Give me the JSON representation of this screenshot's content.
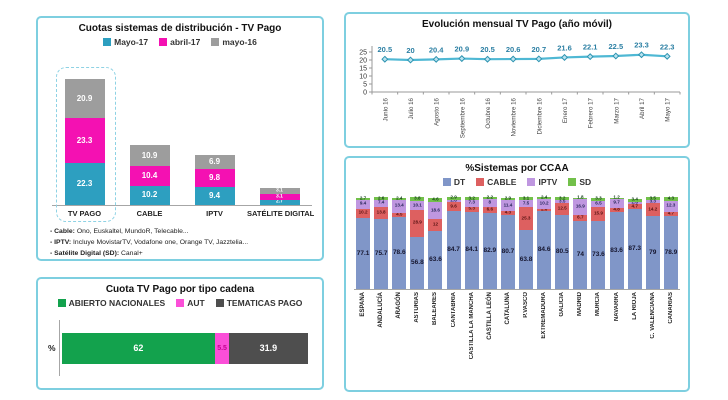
{
  "page": {
    "background": "#ffffff",
    "panel_border_color": "#7ecfe0"
  },
  "chart_data": [
    {
      "id": "cuotas-sistemas-distribucion",
      "type": "bar",
      "subtype": "stacked-vertical",
      "title": "Cuotas sistemas de distribución - TV Pago",
      "categories": [
        "TV PAGO",
        "CABLE",
        "IPTV",
        "SATÉLITE DIGITAL"
      ],
      "series": [
        {
          "name": "Mayo-17",
          "color": "#2d9fc0",
          "values": [
            22.3,
            10.2,
            9.4,
            2.7
          ]
        },
        {
          "name": "abril-17",
          "color": "#f411b2",
          "values": [
            23.3,
            10.4,
            9.8,
            3.1
          ]
        },
        {
          "name": "mayo-16",
          "color": "#9d9d9d",
          "values": [
            20.9,
            10.9,
            6.9,
            3.1
          ]
        }
      ],
      "highlighted_category": "TV PAGO",
      "footnotes": [
        {
          "label": "- Cable:",
          "text": " Ono, Euskaltel, MundoR, Telecable..."
        },
        {
          "label": "- IPTV:",
          "text": " Incluye MovistarTV, Vodafone one, Orange TV, Jazztelia..."
        },
        {
          "label": "- Satélite Digital (SD):",
          "text": " Canal+"
        }
      ]
    },
    {
      "id": "evolucion-mensual",
      "type": "line",
      "title": "Evolución mensual TV Pago (año móvil)",
      "x": [
        "Junio 16",
        "Julio 16",
        "Agosto 16",
        "Septiembre 16",
        "Octubre 16",
        "Noviembre 16",
        "Diciembre 16",
        "Enero 17",
        "Febrero 17",
        "Marzo 17",
        "Abril 17",
        "Mayo 17"
      ],
      "values": [
        20.5,
        20,
        20.4,
        20.9,
        20.5,
        20.6,
        20.7,
        21.6,
        22.1,
        22.5,
        23.3,
        22.3
      ],
      "ylim": [
        0,
        25
      ],
      "yticks": [
        0,
        5,
        10,
        15,
        20,
        25
      ],
      "line_color": "#4fb8d4",
      "marker_fill": "#b9e3f0",
      "marker_stroke": "#2d93b0",
      "label_color": "#2b7fa3",
      "grid": false,
      "legend_position": "none"
    },
    {
      "id": "cuota-tipo-cadena",
      "type": "bar",
      "subtype": "stacked-horizontal",
      "title": "Cuota TV Pago por tipo cadena",
      "axis_label": "%",
      "segments": [
        {
          "name": "ABIERTO NACIONALES",
          "value": 62,
          "color": "#13a24d",
          "label_color": "#ffffff"
        },
        {
          "name": "AUT",
          "value": 5.5,
          "color": "#fb4fd8",
          "label_color": "#c4008f"
        },
        {
          "name": "TEMATICAS PAGO",
          "value": 31.9,
          "color": "#4e4e4e",
          "label_color": "#ffffff"
        }
      ]
    },
    {
      "id": "sistemas-por-ccaa",
      "type": "bar",
      "subtype": "stacked-100",
      "title": "%Sistemas por CCAA",
      "legend": [
        {
          "name": "DT",
          "color": "#8096c8",
          "label_color": "#15152e",
          "label_size": "dt"
        },
        {
          "name": "CABLE",
          "color": "#dd6060",
          "label_color": "#571212",
          "label_size": "small"
        },
        {
          "name": "IPTV",
          "color": "#bf97e0",
          "label_color": "#27275a",
          "label_size": "small"
        },
        {
          "name": "SD",
          "color": "#72c04a",
          "label_color": "#14401a",
          "label_size": "small"
        }
      ],
      "categories": [
        "ESPAÑA",
        "ANDALUCÍA",
        "ARAGÓN",
        "ASTURIAS",
        "BALEARES",
        "CANTABRIA",
        "CASTILLA LA MANCHA",
        "CASTILLA LEÓN",
        "CATALUÑA",
        "P.VASCO",
        "EXTREMADURA",
        "GALICIA",
        "MADRID",
        "MURCIA",
        "NAVARRA",
        "LA RIOJA",
        "C. VALENCIANA",
        "CANARIAS"
      ],
      "series": [
        {
          "name": "DT",
          "values": [
            77.1,
            75.7,
            78.6,
            56.8,
            63.6,
            84.7,
            84.1,
            82.9,
            80.7,
            63.8,
            84.6,
            80.5,
            74,
            73.6,
            83.6,
            87.3,
            79,
            78.9
          ]
        },
        {
          "name": "CABLE",
          "values": [
            10.2,
            13.8,
            4.5,
            28.9,
            12,
            9.6,
            5.3,
            6.6,
            4.3,
            25.3,
            2.6,
            12.5,
            6.7,
            15.9,
            4.8,
            4.7,
            14.2,
            4.7
          ]
        },
        {
          "name": "IPTV",
          "values": [
            9.4,
            7.4,
            13.4,
            10.1,
            18.6,
            2.8,
            7.3,
            8,
            11.4,
            7.5,
            10.2,
            3.5,
            16.9,
            6.5,
            9.7,
            2.6,
            3.3,
            12.3
          ]
        },
        {
          "name": "SD",
          "values": [
            2.7,
            2.6,
            2.4,
            3.8,
            4.6,
            2.9,
            3.2,
            2.2,
            2.9,
            3.1,
            2.4,
            3.2,
            1.8,
            3.3,
            1.2,
            3.4,
            3.5,
            4.3
          ]
        }
      ]
    }
  ]
}
